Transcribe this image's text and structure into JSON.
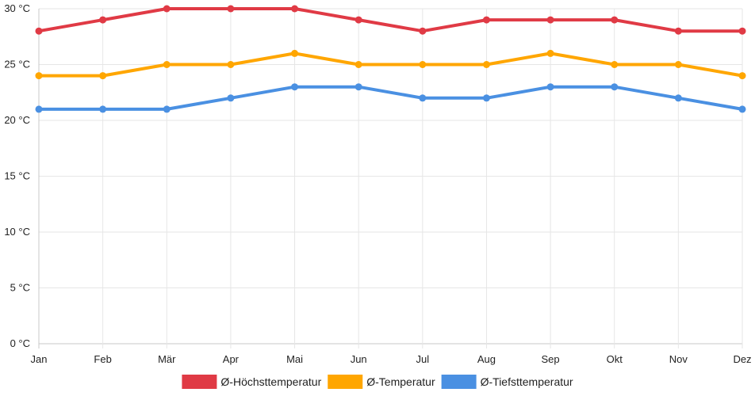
{
  "chart_data": {
    "type": "line",
    "title": "",
    "xlabel": "",
    "ylabel": "",
    "categories": [
      "Jan",
      "Feb",
      "Mär",
      "Apr",
      "Mai",
      "Jun",
      "Jul",
      "Aug",
      "Sep",
      "Okt",
      "Nov",
      "Dez"
    ],
    "y_ticks": [
      "0 °C",
      "5 °C",
      "10 °C",
      "15 °C",
      "20 °C",
      "25 °C",
      "30 °C"
    ],
    "ylim": [
      0,
      30
    ],
    "grid": true,
    "legend_position": "bottom-center",
    "series": [
      {
        "name": "Ø-Höchsttemperatur",
        "color": "#e03a45",
        "values": [
          28,
          29,
          30,
          30,
          30,
          29,
          28,
          29,
          29,
          29,
          28,
          28
        ]
      },
      {
        "name": "Ø-Temperatur",
        "color": "#ffa600",
        "values": [
          24,
          24,
          25,
          25,
          26,
          25,
          25,
          25,
          26,
          25,
          25,
          24
        ]
      },
      {
        "name": "Ø-Tiefsttemperatur",
        "color": "#4a90e2",
        "values": [
          21,
          21,
          21,
          22,
          23,
          23,
          22,
          22,
          23,
          23,
          22,
          21
        ]
      }
    ]
  }
}
